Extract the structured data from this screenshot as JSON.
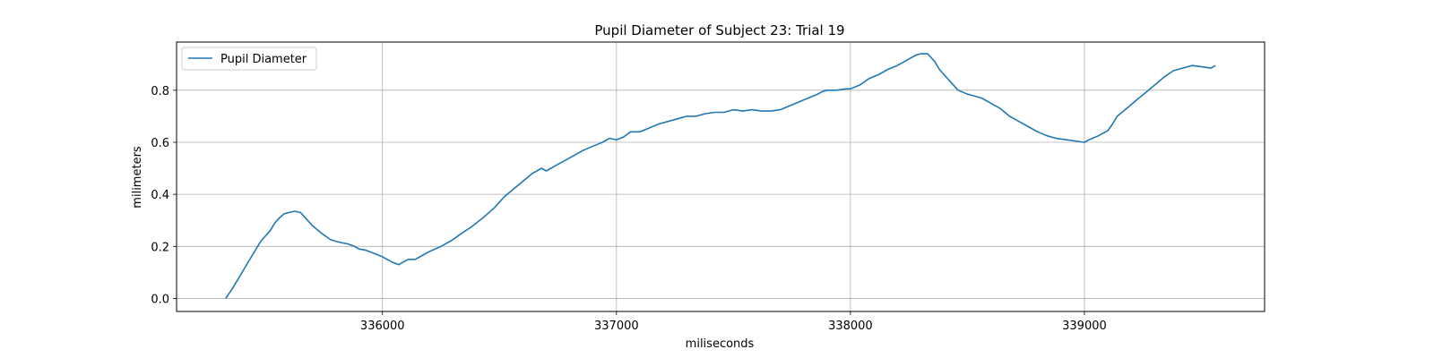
{
  "chart_data": {
    "type": "line",
    "title": "Pupil Diameter of Subject 23: Trial 19",
    "xlabel": "miliseconds",
    "ylabel": "milimeters",
    "xlim": [
      335120,
      339770
    ],
    "ylim": [
      -0.05,
      0.985
    ],
    "xticks": [
      336000,
      337000,
      338000,
      339000
    ],
    "yticks": [
      0.0,
      0.2,
      0.4,
      0.6,
      0.8
    ],
    "xtick_labels": [
      "336000",
      "337000",
      "338000",
      "339000"
    ],
    "ytick_labels": [
      "0.0",
      "0.2",
      "0.4",
      "0.6",
      "0.8"
    ],
    "grid": true,
    "legend_position": "upper-left",
    "series": [
      {
        "name": "Pupil Diameter",
        "color": "#1f77b4",
        "x": [
          335330,
          335360,
          335400,
          335440,
          335480,
          335520,
          335540,
          335560,
          335580,
          335600,
          335625,
          335650,
          335680,
          335700,
          335740,
          335780,
          335800,
          335820,
          335850,
          335880,
          335900,
          335930,
          335960,
          336000,
          336040,
          336070,
          336090,
          336110,
          336140,
          336170,
          336200,
          336250,
          336280,
          336300,
          336330,
          336380,
          336430,
          336480,
          336520,
          336560,
          336600,
          336640,
          336680,
          336700,
          336740,
          336780,
          336800,
          336830,
          336860,
          336900,
          336940,
          336970,
          337000,
          337030,
          337060,
          337100,
          337140,
          337180,
          337220,
          337260,
          337300,
          337340,
          337380,
          337420,
          337460,
          337500,
          337540,
          337580,
          337620,
          337660,
          337700,
          337740,
          337780,
          337820,
          337860,
          337880,
          337900,
          337940,
          337980,
          338000,
          338040,
          338080,
          338120,
          338160,
          338200,
          338240,
          338280,
          338300,
          338330,
          338360,
          338380,
          338400,
          338420,
          338460,
          338500,
          338520,
          338560,
          338600,
          338640,
          338680,
          338720,
          338760,
          338800,
          338840,
          338880,
          338920,
          338960,
          339000,
          339020,
          339060,
          339100,
          339120,
          339140,
          339180,
          339220,
          339260,
          339300,
          339340,
          339380,
          339420,
          339460,
          339500,
          339540,
          339560
        ],
        "y": [
          0.0,
          0.04,
          0.1,
          0.16,
          0.22,
          0.26,
          0.29,
          0.31,
          0.325,
          0.33,
          0.335,
          0.33,
          0.3,
          0.28,
          0.25,
          0.225,
          0.22,
          0.215,
          0.21,
          0.2,
          0.19,
          0.185,
          0.175,
          0.16,
          0.14,
          0.13,
          0.14,
          0.15,
          0.15,
          0.165,
          0.18,
          0.2,
          0.215,
          0.225,
          0.245,
          0.275,
          0.31,
          0.35,
          0.39,
          0.42,
          0.45,
          0.48,
          0.5,
          0.49,
          0.51,
          0.53,
          0.54,
          0.555,
          0.57,
          0.585,
          0.6,
          0.615,
          0.61,
          0.62,
          0.64,
          0.64,
          0.655,
          0.67,
          0.68,
          0.69,
          0.7,
          0.7,
          0.71,
          0.715,
          0.715,
          0.725,
          0.72,
          0.725,
          0.72,
          0.72,
          0.725,
          0.74,
          0.755,
          0.77,
          0.785,
          0.795,
          0.8,
          0.8,
          0.805,
          0.805,
          0.82,
          0.845,
          0.86,
          0.88,
          0.895,
          0.915,
          0.935,
          0.94,
          0.94,
          0.91,
          0.88,
          0.86,
          0.84,
          0.8,
          0.785,
          0.78,
          0.77,
          0.75,
          0.73,
          0.7,
          0.68,
          0.66,
          0.64,
          0.625,
          0.615,
          0.61,
          0.605,
          0.6,
          0.61,
          0.625,
          0.645,
          0.67,
          0.7,
          0.73,
          0.76,
          0.79,
          0.82,
          0.85,
          0.875,
          0.885,
          0.895,
          0.89,
          0.885,
          0.895
        ]
      }
    ]
  }
}
